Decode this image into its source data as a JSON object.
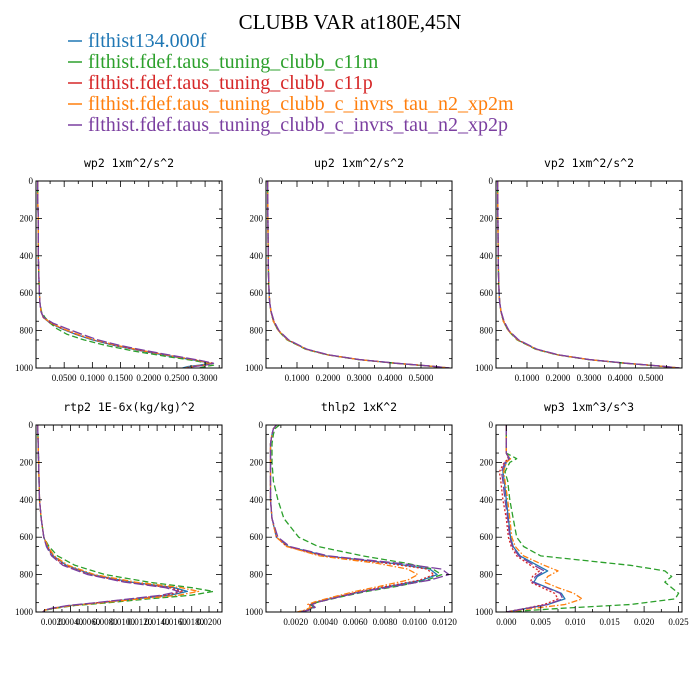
{
  "figure": {
    "title": "CLUBB VAR at180E,45N"
  },
  "colors": {
    "blue": "#1f77b4",
    "green": "#2ca02c",
    "red": "#d62728",
    "orange": "#ff7f0e",
    "purple": "#7b3fa0"
  },
  "legend": [
    {
      "label": "flthist134.000f",
      "color": "#1f77b4",
      "dash": "solid"
    },
    {
      "label": "flthist.fdef.taus_tuning_clubb_c11m",
      "color": "#2ca02c",
      "dash": "dash"
    },
    {
      "label": "flthist.fdef.taus_tuning_clubb_c11p",
      "color": "#d62728",
      "dash": "dot"
    },
    {
      "label": "flthist.fdef.taus_tuning_clubb_c_invrs_tau_n2_xp2m",
      "color": "#ff7f0e",
      "dash": "dashdot"
    },
    {
      "label": "flthist.fdef.taus_tuning_clubb_c_invrs_tau_n2_xp2p",
      "color": "#7b3fa0",
      "dash": "longdash"
    }
  ],
  "chart_data": [
    {
      "type": "line",
      "title": "wp2  1xm^2/s^2",
      "xlim": [
        0,
        0.33
      ],
      "ylim": [
        1000,
        0
      ],
      "xticks": [
        0.05,
        0.1,
        0.15,
        0.2,
        0.25,
        0.3
      ],
      "xtick_labels": [
        "0.0500",
        "0.1000",
        "0.1500",
        "0.2000",
        "0.2500",
        "0.3000"
      ],
      "yticks": [
        0,
        200,
        400,
        600,
        800,
        1000
      ],
      "ytick_labels": [
        "0",
        "200",
        "400",
        "600",
        "800",
        "1000"
      ],
      "y": [
        0,
        100,
        200,
        300,
        400,
        500,
        600,
        650,
        700,
        730,
        760,
        790,
        820,
        850,
        880,
        910,
        940,
        960,
        975,
        985,
        992,
        1000
      ],
      "series": [
        {
          "values": [
            0.003,
            0.003,
            0.004,
            0.004,
            0.004,
            0.005,
            0.006,
            0.007,
            0.009,
            0.013,
            0.025,
            0.045,
            0.07,
            0.1,
            0.14,
            0.19,
            0.245,
            0.285,
            0.31,
            0.29,
            0.27,
            0.26
          ]
        },
        {
          "values": [
            0.003,
            0.003,
            0.004,
            0.004,
            0.004,
            0.005,
            0.006,
            0.007,
            0.01,
            0.016,
            0.025,
            0.037,
            0.055,
            0.085,
            0.125,
            0.175,
            0.235,
            0.28,
            0.305,
            0.315,
            0.3,
            0.29
          ]
        },
        {
          "values": [
            0.003,
            0.003,
            0.004,
            0.004,
            0.004,
            0.005,
            0.006,
            0.007,
            0.009,
            0.013,
            0.026,
            0.047,
            0.072,
            0.102,
            0.142,
            0.192,
            0.25,
            0.29,
            0.315,
            0.3,
            0.28,
            0.27
          ]
        },
        {
          "values": [
            0.003,
            0.003,
            0.004,
            0.004,
            0.004,
            0.005,
            0.006,
            0.007,
            0.009,
            0.013,
            0.027,
            0.048,
            0.074,
            0.104,
            0.145,
            0.195,
            0.25,
            0.288,
            0.31,
            0.295,
            0.275,
            0.265
          ]
        },
        {
          "values": [
            0.003,
            0.003,
            0.004,
            0.004,
            0.004,
            0.005,
            0.006,
            0.007,
            0.009,
            0.014,
            0.03,
            0.055,
            0.082,
            0.11,
            0.15,
            0.2,
            0.255,
            0.292,
            0.315,
            0.3,
            0.28,
            0.268
          ]
        }
      ]
    },
    {
      "type": "line",
      "title": "up2  1xm^2/s^2",
      "xlim": [
        0,
        0.6
      ],
      "ylim": [
        1000,
        0
      ],
      "xticks": [
        0.1,
        0.2,
        0.3,
        0.4,
        0.5
      ],
      "xtick_labels": [
        "0.1000",
        "0.2000",
        "0.3000",
        "0.4000",
        "0.5000"
      ],
      "yticks": [
        0,
        200,
        400,
        600,
        800,
        1000
      ],
      "ytick_labels": [
        "0",
        "200",
        "400",
        "600",
        "800",
        "1000"
      ],
      "y": [
        0,
        200,
        400,
        500,
        600,
        650,
        700,
        750,
        800,
        850,
        900,
        930,
        955,
        975,
        990,
        1000
      ],
      "series": [
        {
          "values": [
            0.005,
            0.006,
            0.007,
            0.008,
            0.01,
            0.012,
            0.016,
            0.024,
            0.04,
            0.07,
            0.13,
            0.2,
            0.3,
            0.42,
            0.53,
            0.59
          ]
        },
        {
          "values": [
            0.005,
            0.006,
            0.007,
            0.008,
            0.01,
            0.012,
            0.016,
            0.024,
            0.039,
            0.068,
            0.128,
            0.198,
            0.298,
            0.418,
            0.528,
            0.588
          ]
        },
        {
          "values": [
            0.005,
            0.006,
            0.007,
            0.008,
            0.01,
            0.012,
            0.016,
            0.025,
            0.041,
            0.071,
            0.131,
            0.201,
            0.301,
            0.421,
            0.531,
            0.591
          ]
        },
        {
          "values": [
            0.005,
            0.006,
            0.007,
            0.008,
            0.01,
            0.012,
            0.016,
            0.024,
            0.04,
            0.07,
            0.13,
            0.2,
            0.3,
            0.42,
            0.53,
            0.59
          ]
        },
        {
          "values": [
            0.005,
            0.006,
            0.007,
            0.008,
            0.01,
            0.012,
            0.017,
            0.026,
            0.042,
            0.073,
            0.133,
            0.203,
            0.303,
            0.423,
            0.533,
            0.593
          ]
        }
      ]
    },
    {
      "type": "line",
      "title": "vp2  1xm^2/s^2",
      "xlim": [
        0,
        0.6
      ],
      "ylim": [
        1000,
        0
      ],
      "xticks": [
        0.1,
        0.2,
        0.3,
        0.4,
        0.5
      ],
      "xtick_labels": [
        "0.1000",
        "0.2000",
        "0.3000",
        "0.4000",
        "0.5000"
      ],
      "yticks": [
        0,
        200,
        400,
        600,
        800,
        1000
      ],
      "ytick_labels": [
        "0",
        "200",
        "400",
        "600",
        "800",
        "1000"
      ],
      "y": [
        0,
        200,
        400,
        500,
        600,
        650,
        700,
        750,
        800,
        850,
        900,
        930,
        955,
        975,
        990,
        1000
      ],
      "series": [
        {
          "values": [
            0.005,
            0.006,
            0.007,
            0.008,
            0.01,
            0.012,
            0.016,
            0.024,
            0.04,
            0.07,
            0.13,
            0.2,
            0.3,
            0.42,
            0.53,
            0.59
          ]
        },
        {
          "values": [
            0.005,
            0.006,
            0.007,
            0.008,
            0.01,
            0.012,
            0.016,
            0.024,
            0.039,
            0.068,
            0.128,
            0.198,
            0.298,
            0.418,
            0.528,
            0.588
          ]
        },
        {
          "values": [
            0.005,
            0.006,
            0.007,
            0.008,
            0.01,
            0.012,
            0.016,
            0.025,
            0.041,
            0.071,
            0.131,
            0.201,
            0.301,
            0.421,
            0.531,
            0.591
          ]
        },
        {
          "values": [
            0.005,
            0.006,
            0.007,
            0.008,
            0.01,
            0.012,
            0.016,
            0.024,
            0.04,
            0.07,
            0.13,
            0.2,
            0.3,
            0.42,
            0.53,
            0.59
          ]
        },
        {
          "values": [
            0.005,
            0.006,
            0.007,
            0.008,
            0.01,
            0.012,
            0.017,
            0.026,
            0.042,
            0.073,
            0.133,
            0.203,
            0.303,
            0.423,
            0.533,
            0.593
          ]
        }
      ]
    },
    {
      "type": "line",
      "title": "rtp2  1E-6x(kg/kg)^2",
      "xlim": [
        0,
        0.0215
      ],
      "ylim": [
        1000,
        0
      ],
      "xticks": [
        0.002,
        0.004,
        0.006,
        0.008,
        0.01,
        0.012,
        0.014,
        0.016,
        0.018,
        0.02
      ],
      "xtick_labels": [
        "0.0020",
        "0.0040",
        "0.0060",
        "0.0080",
        "0.0100",
        "0.0120",
        "0.0140",
        "0.0160",
        "0.0180",
        "0.0200"
      ],
      "yticks": [
        0,
        200,
        400,
        600,
        800,
        1000
      ],
      "ytick_labels": [
        "0",
        "200",
        "400",
        "600",
        "800",
        "1000"
      ],
      "y": [
        0,
        200,
        400,
        500,
        600,
        650,
        700,
        750,
        800,
        840,
        870,
        890,
        910,
        930,
        950,
        965,
        980,
        990,
        1000
      ],
      "series": [
        {
          "values": [
            0.0002,
            0.0003,
            0.0004,
            0.0006,
            0.0009,
            0.0013,
            0.002,
            0.0035,
            0.0065,
            0.011,
            0.016,
            0.0175,
            0.0155,
            0.0115,
            0.0075,
            0.004,
            0.002,
            0.001,
            0.0008
          ]
        },
        {
          "values": [
            0.0002,
            0.0003,
            0.0004,
            0.0006,
            0.0009,
            0.0015,
            0.0025,
            0.0045,
            0.008,
            0.013,
            0.018,
            0.0205,
            0.018,
            0.013,
            0.0085,
            0.0045,
            0.0022,
            0.0011,
            0.0009
          ]
        },
        {
          "values": [
            0.0002,
            0.0003,
            0.0004,
            0.0006,
            0.0009,
            0.0013,
            0.0019,
            0.0033,
            0.0062,
            0.0105,
            0.0155,
            0.017,
            0.015,
            0.011,
            0.0072,
            0.0038,
            0.0019,
            0.001,
            0.0008
          ]
        },
        {
          "values": [
            0.0002,
            0.0003,
            0.0004,
            0.0006,
            0.0009,
            0.0014,
            0.0021,
            0.0037,
            0.0068,
            0.0115,
            0.0168,
            0.0188,
            0.0165,
            0.012,
            0.0078,
            0.0042,
            0.0021,
            0.001,
            0.0008
          ]
        },
        {
          "values": [
            0.0002,
            0.0003,
            0.0004,
            0.0006,
            0.0009,
            0.0012,
            0.0018,
            0.0031,
            0.006,
            0.0102,
            0.015,
            0.0165,
            0.0145,
            0.0108,
            0.007,
            0.0037,
            0.0018,
            0.001,
            0.0008
          ]
        }
      ]
    },
    {
      "type": "line",
      "title": "thlp2  1xK^2",
      "xlim": [
        0,
        0.0125
      ],
      "ylim": [
        1000,
        0
      ],
      "xticks": [
        0.002,
        0.004,
        0.006,
        0.008,
        0.01,
        0.012
      ],
      "xtick_labels": [
        "0.0020",
        "0.0040",
        "0.0060",
        "0.0080",
        "0.0100",
        "0.0120"
      ],
      "yticks": [
        0,
        200,
        400,
        600,
        800,
        1000
      ],
      "ytick_labels": [
        "0",
        "200",
        "400",
        "600",
        "800",
        "1000"
      ],
      "y": [
        0,
        20,
        50,
        100,
        200,
        300,
        400,
        500,
        600,
        650,
        700,
        740,
        770,
        800,
        830,
        860,
        890,
        920,
        945,
        960,
        975,
        990,
        1000
      ],
      "series": [
        {
          "values": [
            0.0007,
            0.0005,
            0.0004,
            0.0003,
            0.0003,
            0.0003,
            0.0003,
            0.0004,
            0.0007,
            0.0015,
            0.004,
            0.0085,
            0.011,
            0.0115,
            0.0105,
            0.0085,
            0.0065,
            0.0048,
            0.0035,
            0.003,
            0.0032,
            0.0028,
            0.0022
          ]
        },
        {
          "values": [
            0.0009,
            0.0006,
            0.0005,
            0.0004,
            0.0004,
            0.0005,
            0.0008,
            0.0012,
            0.0022,
            0.0035,
            0.0065,
            0.0095,
            0.0112,
            0.0118,
            0.0108,
            0.009,
            0.0068,
            0.005,
            0.0036,
            0.003,
            0.0033,
            0.0028,
            0.0022
          ]
        },
        {
          "values": [
            0.0007,
            0.0005,
            0.0004,
            0.0003,
            0.0003,
            0.0003,
            0.0003,
            0.0004,
            0.0007,
            0.0014,
            0.0038,
            0.0082,
            0.0108,
            0.0113,
            0.0103,
            0.0083,
            0.0063,
            0.0047,
            0.0034,
            0.0029,
            0.0031,
            0.0027,
            0.0021
          ]
        },
        {
          "values": [
            0.0007,
            0.0005,
            0.0004,
            0.0003,
            0.0003,
            0.0003,
            0.0003,
            0.0004,
            0.0007,
            0.0014,
            0.0036,
            0.0075,
            0.0095,
            0.0102,
            0.0095,
            0.0078,
            0.006,
            0.0045,
            0.0033,
            0.0028,
            0.003,
            0.0026,
            0.0021
          ]
        },
        {
          "values": [
            0.0007,
            0.0005,
            0.0004,
            0.0003,
            0.0003,
            0.0003,
            0.0003,
            0.0004,
            0.0008,
            0.0016,
            0.0042,
            0.009,
            0.0118,
            0.0123,
            0.011,
            0.0088,
            0.0066,
            0.0049,
            0.0036,
            0.0031,
            0.0033,
            0.0029,
            0.0023
          ]
        }
      ]
    },
    {
      "type": "line",
      "title": "wp3  1xm^3/s^3",
      "xlim": [
        -0.0015,
        0.0255
      ],
      "ylim": [
        1000,
        0
      ],
      "xticks": [
        0,
        0.005,
        0.01,
        0.015,
        0.02,
        0.025
      ],
      "xtick_labels": [
        "0.000",
        "0.005",
        "0.010",
        "0.015",
        "0.020",
        "0.025"
      ],
      "yticks": [
        0,
        200,
        400,
        600,
        800,
        1000
      ],
      "ytick_labels": [
        "0",
        "200",
        "400",
        "600",
        "800",
        "1000"
      ],
      "y": [
        0,
        100,
        150,
        180,
        200,
        250,
        300,
        400,
        500,
        600,
        650,
        700,
        750,
        780,
        810,
        840,
        870,
        900,
        930,
        960,
        980,
        1000
      ],
      "series": [
        {
          "values": [
            0.0,
            0.0,
            0.0,
            0.0005,
            0.0,
            -0.0005,
            -0.0003,
            0.0,
            0.0003,
            0.0006,
            0.001,
            0.002,
            0.0045,
            0.006,
            0.0045,
            0.004,
            0.006,
            0.008,
            0.0085,
            0.006,
            0.003,
            0.0
          ]
        },
        {
          "values": [
            0.0,
            0.0,
            0.0,
            0.0015,
            0.0005,
            -0.0002,
            0.0002,
            0.0005,
            0.001,
            0.0015,
            0.0025,
            0.005,
            0.018,
            0.023,
            0.024,
            0.023,
            0.024,
            0.025,
            0.0245,
            0.018,
            0.008,
            0.0
          ]
        },
        {
          "values": [
            0.0,
            0.0,
            0.0,
            0.0003,
            -0.0003,
            -0.001,
            -0.0008,
            -0.0005,
            0.0,
            0.0003,
            0.0007,
            0.0015,
            0.0035,
            0.0048,
            0.0038,
            0.0035,
            0.0052,
            0.007,
            0.0075,
            0.0055,
            0.0028,
            0.0
          ]
        },
        {
          "values": [
            0.0,
            0.0,
            0.0,
            0.0006,
            0.0,
            -0.0004,
            -0.0002,
            0.0002,
            0.0005,
            0.0008,
            0.0013,
            0.0025,
            0.0055,
            0.0075,
            0.006,
            0.0055,
            0.0075,
            0.0098,
            0.011,
            0.0085,
            0.004,
            0.0
          ]
        },
        {
          "values": [
            0.0,
            0.0,
            0.0,
            0.0004,
            -0.0002,
            -0.0007,
            -0.0005,
            -0.0002,
            0.0002,
            0.0005,
            0.0009,
            0.0018,
            0.004,
            0.0055,
            0.0042,
            0.0038,
            0.0058,
            0.0078,
            0.0082,
            0.006,
            0.003,
            0.0
          ]
        }
      ]
    }
  ]
}
